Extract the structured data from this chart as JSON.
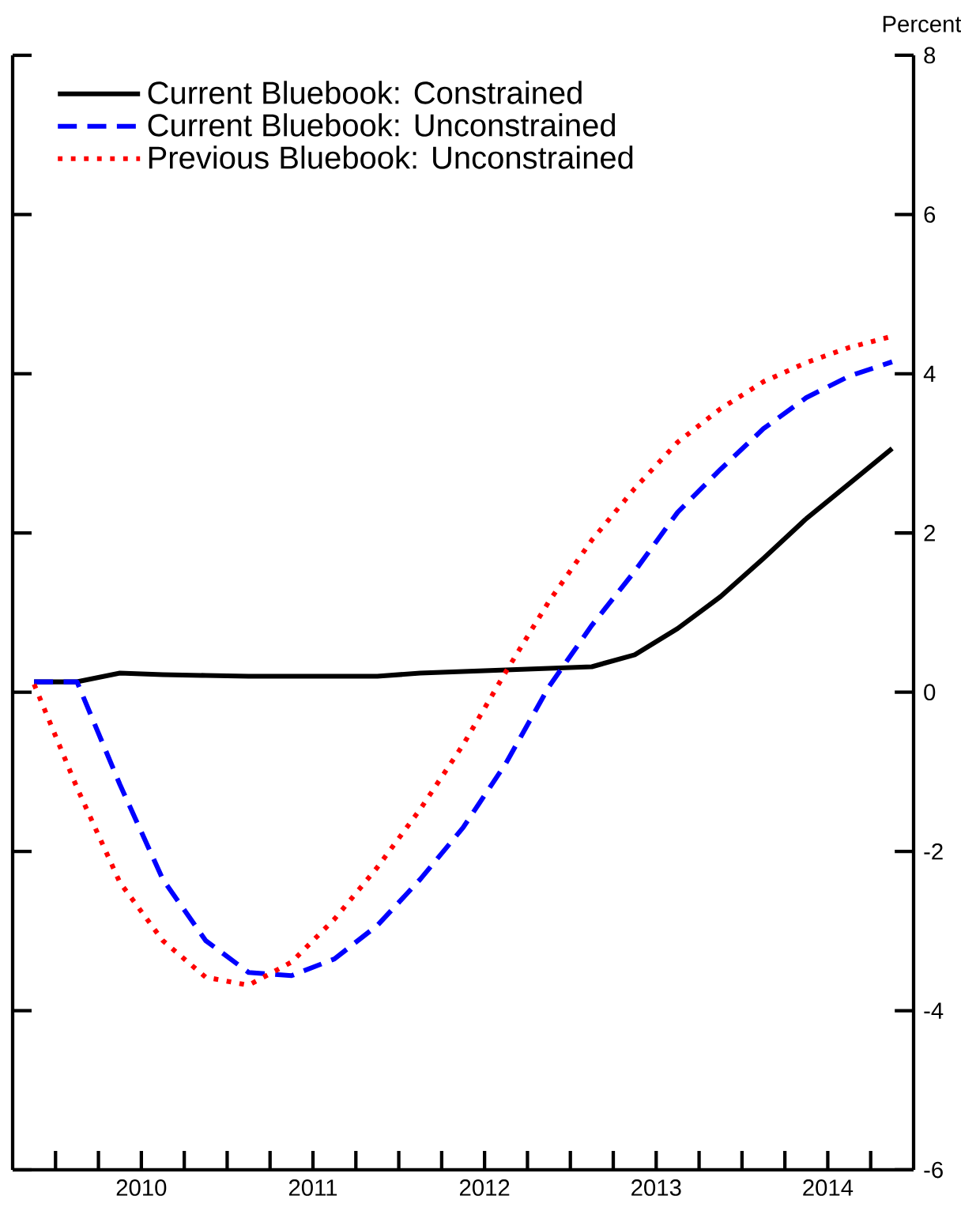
{
  "chart_data": {
    "type": "line",
    "ylabel": "Percent",
    "x": [
      2009.875,
      2010.125,
      2010.375,
      2010.625,
      2010.875,
      2011.125,
      2011.375,
      2011.625,
      2011.875,
      2012.125,
      2012.375,
      2012.625,
      2012.875,
      2013.125,
      2013.375,
      2013.625,
      2013.875,
      2014.125,
      2014.375,
      2014.625,
      2014.875
    ],
    "series": [
      {
        "name": "Current Bluebook: Constrained",
        "color": "#000000",
        "line_style": "solid",
        "values": [
          0.13,
          0.13,
          0.24,
          0.22,
          0.21,
          0.2,
          0.2,
          0.2,
          0.2,
          0.24,
          0.26,
          0.28,
          0.3,
          0.32,
          0.47,
          0.8,
          1.2,
          1.68,
          2.18,
          2.62,
          3.06
        ]
      },
      {
        "name": "Current Bluebook: Unconstrained",
        "color": "#0000ff",
        "line_style": "dashed",
        "values": [
          0.13,
          0.13,
          -1.16,
          -2.35,
          -3.12,
          -3.52,
          -3.56,
          -3.35,
          -2.93,
          -2.35,
          -1.7,
          -0.89,
          0.07,
          0.84,
          1.52,
          2.26,
          2.8,
          3.31,
          3.7,
          3.97,
          4.15
        ]
      },
      {
        "name": "Previous Bluebook: Unconstrained",
        "color": "#ff0000",
        "line_style": "dotted",
        "values": [
          0.1,
          -1.2,
          -2.39,
          -3.12,
          -3.58,
          -3.68,
          -3.39,
          -2.85,
          -2.2,
          -1.47,
          -0.66,
          0.26,
          1.14,
          1.91,
          2.56,
          3.14,
          3.56,
          3.9,
          4.14,
          4.33,
          4.47
        ]
      }
    ],
    "xlim": [
      2009.75,
      2015.0
    ],
    "xticks": [
      {
        "value": 2010.0,
        "label": null
      },
      {
        "value": 2010.25,
        "label": null
      },
      {
        "value": 2010.5,
        "label": "2010"
      },
      {
        "value": 2010.75,
        "label": null
      },
      {
        "value": 2011.0,
        "label": null
      },
      {
        "value": 2011.25,
        "label": null
      },
      {
        "value": 2011.5,
        "label": "2011"
      },
      {
        "value": 2011.75,
        "label": null
      },
      {
        "value": 2012.0,
        "label": null
      },
      {
        "value": 2012.25,
        "label": null
      },
      {
        "value": 2012.5,
        "label": "2012"
      },
      {
        "value": 2012.75,
        "label": null
      },
      {
        "value": 2013.0,
        "label": null
      },
      {
        "value": 2013.25,
        "label": null
      },
      {
        "value": 2013.5,
        "label": "2013"
      },
      {
        "value": 2013.75,
        "label": null
      },
      {
        "value": 2014.0,
        "label": null
      },
      {
        "value": 2014.25,
        "label": null
      },
      {
        "value": 2014.5,
        "label": "2014"
      },
      {
        "value": 2014.75,
        "label": null
      }
    ],
    "ylim": [
      -6,
      8
    ],
    "yticks": [
      -6,
      -4,
      -2,
      0,
      2,
      4,
      6,
      8
    ],
    "legend": "top left",
    "marker": "none"
  }
}
